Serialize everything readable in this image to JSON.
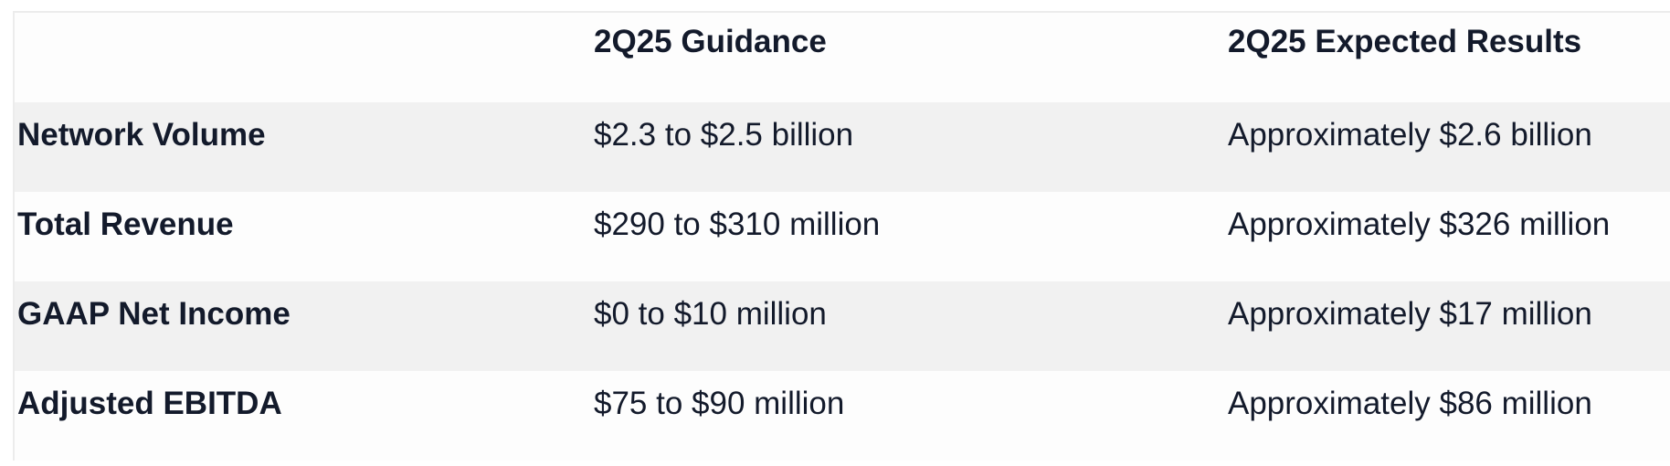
{
  "table": {
    "headers": [
      "",
      "2Q25 Guidance",
      "2Q25 Expected Results"
    ],
    "rows": [
      {
        "metric": "Network Volume",
        "guidance": "$2.3 to $2.5 billion",
        "expected": "Approximately $2.6 billion"
      },
      {
        "metric": "Total Revenue",
        "guidance": "$290 to $310 million",
        "expected": "Approximately $326 million"
      },
      {
        "metric": "GAAP Net Income",
        "guidance": "$0 to $10 million",
        "expected": "Approximately $17 million"
      },
      {
        "metric": "Adjusted EBITDA",
        "guidance": "$75 to $90 million",
        "expected": "Approximately $86 million"
      }
    ]
  },
  "colors": {
    "text": "#131a2b",
    "row_shade": "#f1f1f1",
    "row_plain": "#fdfdfd",
    "border": "#ececec"
  }
}
